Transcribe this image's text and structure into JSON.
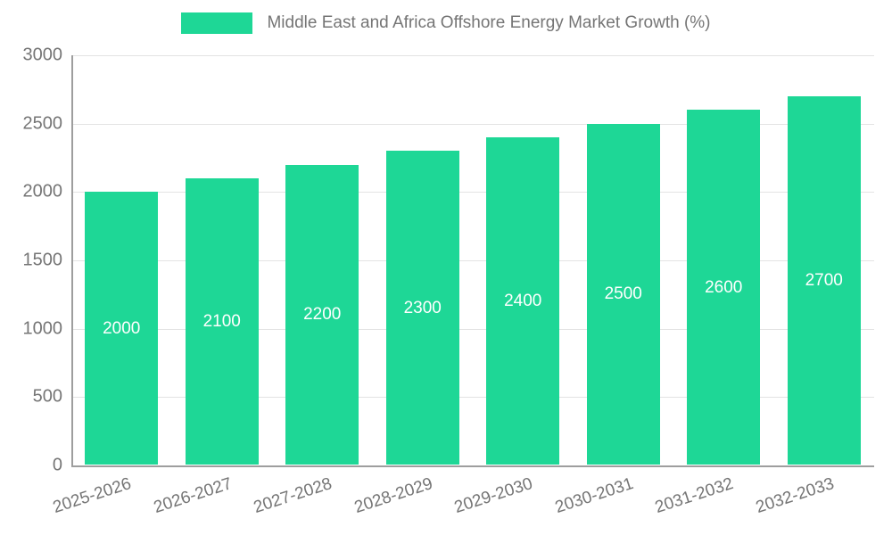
{
  "chart_data": {
    "type": "bar",
    "title": "Middle East and Africa Offshore Energy Market Growth (%)",
    "categories": [
      "2025-2026",
      "2026-2027",
      "2027-2028",
      "2028-2029",
      "2029-2030",
      "2030-2031",
      "2031-2032",
      "2032-2033"
    ],
    "values": [
      2000,
      2100,
      2200,
      2300,
      2400,
      2500,
      2600,
      2700
    ],
    "xlabel": "",
    "ylabel": "",
    "ylim": [
      0,
      3000
    ],
    "yticks": [
      0,
      500,
      1000,
      1500,
      2000,
      2500,
      3000
    ],
    "grid": true,
    "legend_position": "top",
    "bar_color": "#1ED796",
    "value_label_color": "#ffffff",
    "axis_text_color": "#757575",
    "gridline_color": "#e3e3e3",
    "axis_line_color": "#9e9e9e"
  }
}
